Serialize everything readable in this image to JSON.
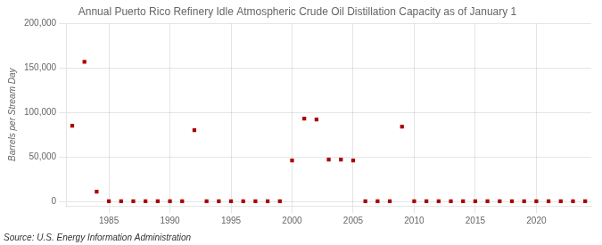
{
  "chart_data": {
    "type": "scatter",
    "title": "Annual Puerto Rico Refinery Idle Atmospheric Crude Oil Distillation Capacity as of January 1",
    "ylabel": "Barrels per Stream Day",
    "annotations": [
      "Source: U.S. Energy Information Administration"
    ],
    "x": [
      1982,
      1983,
      1984,
      1985,
      1986,
      1987,
      1988,
      1989,
      1990,
      1991,
      1992,
      1993,
      1994,
      1995,
      1996,
      1997,
      1998,
      1999,
      2000,
      2001,
      2002,
      2003,
      2004,
      2005,
      2006,
      2007,
      2008,
      2009,
      2010,
      2011,
      2012,
      2013,
      2014,
      2015,
      2016,
      2017,
      2018,
      2019,
      2020,
      2021,
      2022,
      2023,
      2024
    ],
    "values": [
      85000,
      157000,
      11000,
      200,
      200,
      200,
      200,
      200,
      200,
      200,
      80000,
      200,
      200,
      200,
      200,
      200,
      200,
      200,
      46000,
      93000,
      92000,
      47000,
      47000,
      46000,
      200,
      200,
      200,
      84000,
      200,
      200,
      200,
      200,
      200,
      200,
      200,
      200,
      200,
      200,
      200,
      200,
      200,
      200,
      200
    ],
    "color": "#aa0000",
    "marker": "square",
    "xlim": [
      1981.5,
      2024.5
    ],
    "ylim": [
      -5000,
      200000
    ],
    "xticks": [
      1985,
      1990,
      1995,
      2000,
      2005,
      2010,
      2015,
      2020
    ],
    "yticks": [
      0,
      {
        "value": 50000,
        "label": "50,000"
      },
      {
        "value": 100000,
        "label": "100,000"
      },
      {
        "value": 150000,
        "label": "150,000"
      },
      {
        "value": 200000,
        "label": "200,000"
      }
    ],
    "grid": true
  }
}
